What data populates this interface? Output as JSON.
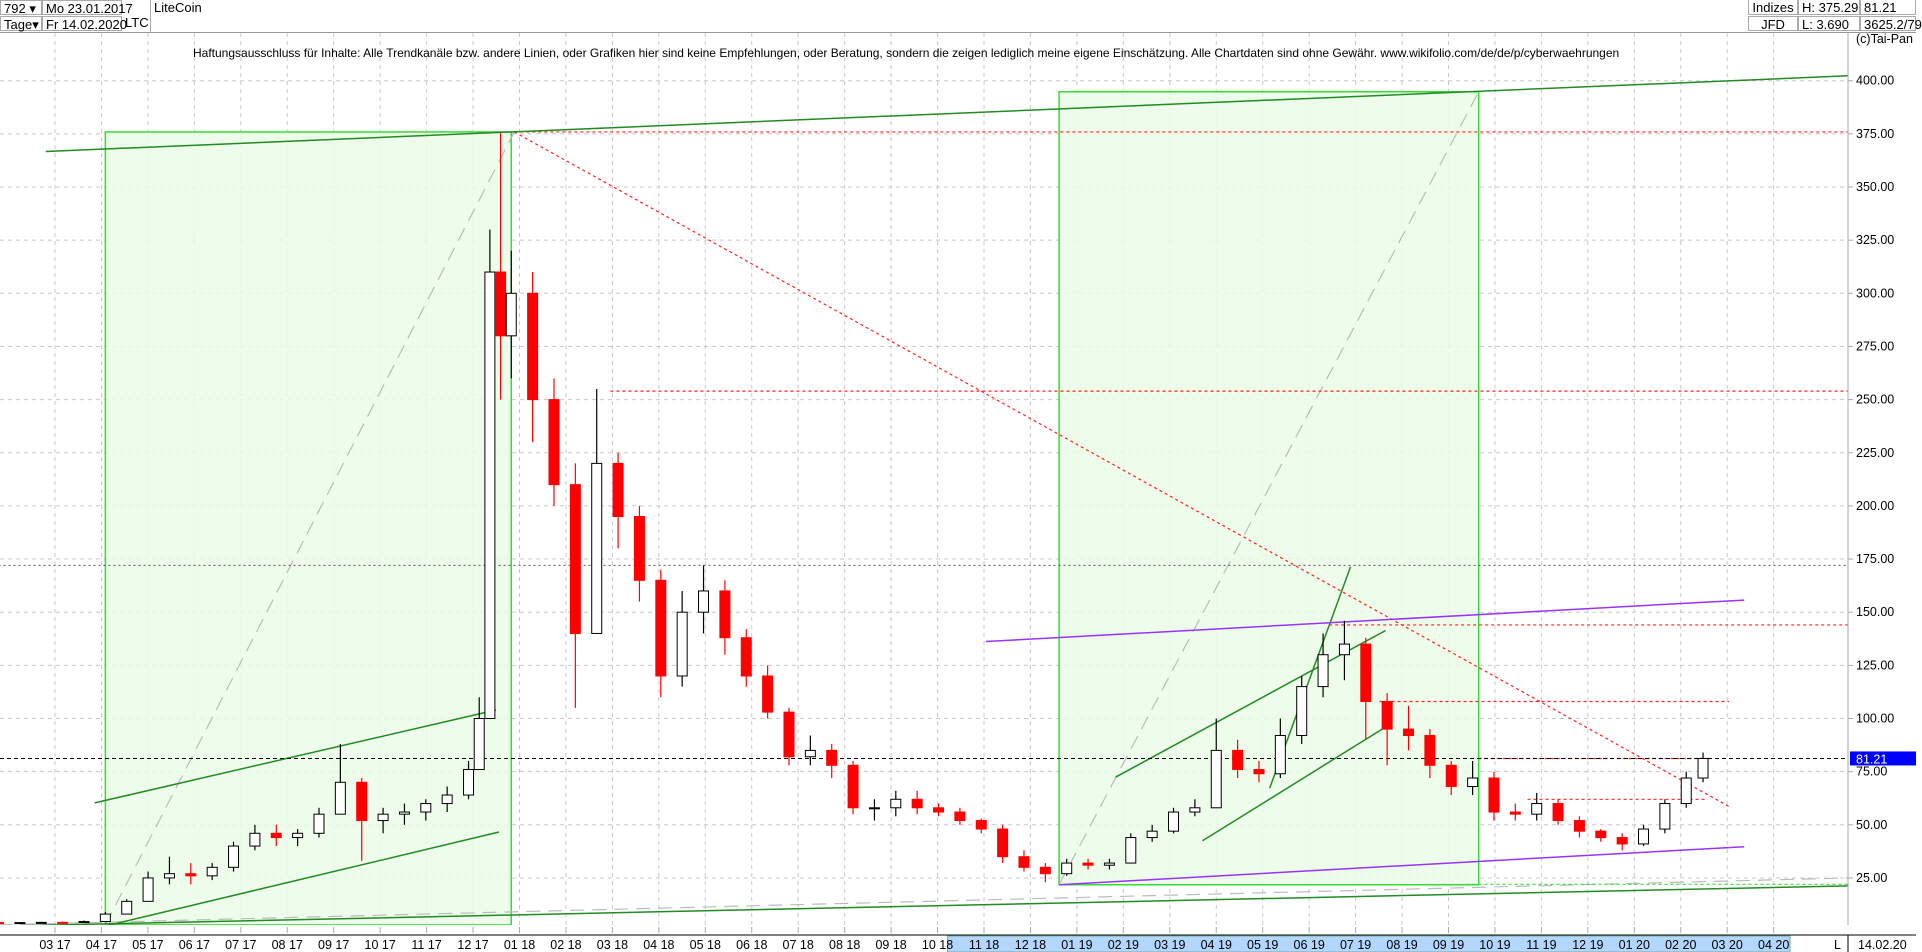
{
  "header": {
    "bar_count": "792",
    "period": "Tage",
    "start_date": "Mo 23.01.2017",
    "end_date": "Fr 14.02.2020",
    "symbol": "LTC",
    "name": "LiteCoin",
    "category": "Indizes",
    "exchange": "JFD",
    "high": "H: 375.29",
    "low": "L: 3.690",
    "last": "81.21",
    "info": "3625.2/79",
    "copyright": "(c)Tai-Pan"
  },
  "disclaimer": "Haftungsausschluss für Inhalte: Alle Trendkanäle bzw. andere Linien, oder Grafiken hier sind keine Empfehlungen, oder Beratung, sondern die zeigen lediglich meine eigene Einschätzung. Alle Chartdaten sind ohne Gewähr.  www.wikifolio.com/de/de/p/cyberwaehrungen",
  "footer": {
    "scale_mode": "L",
    "date": "14.02.20"
  },
  "colors": {
    "down": "#ff0000",
    "up": "#000000",
    "box_fill": "#ebfbe8",
    "box_stroke": "#33dd33",
    "trend": "#228b22",
    "purple": "#9933ff",
    "last_price_bg": "#0000ff",
    "time_axis_highlight": "#b3d6ff"
  },
  "chart_data": {
    "type": "candlestick",
    "ylim": [
      2.6,
      416
    ],
    "y_ticks": [
      "25.00",
      "50.00",
      "75.00",
      "100.00",
      "125.00",
      "150.00",
      "175.00",
      "200.00",
      "225.00",
      "250.00",
      "275.00",
      "300.00",
      "325.00",
      "350.00",
      "375.00",
      "400.00"
    ],
    "last_price_label": "81.21",
    "x_ticks": [
      "03 17",
      "04 17",
      "05 17",
      "06 17",
      "07 17",
      "08 17",
      "09 17",
      "10 17",
      "11 17",
      "12 17",
      "01 18",
      "02 18",
      "03 18",
      "04 18",
      "05 18",
      "06 18",
      "07 18",
      "08 18",
      "09 18",
      "10 18",
      "11 18",
      "12 18",
      "01 19",
      "02 19",
      "03 19",
      "04 19",
      "05 19",
      "06 19",
      "07 19",
      "08 19",
      "09 19",
      "10 19",
      "11 19",
      "12 19",
      "01 20",
      "02 20",
      "03 20",
      "04 20"
    ],
    "grid": true,
    "candles": [
      [
        "2017-01-23",
        4.0,
        4.2,
        3.7,
        3.9
      ],
      [
        "2017-02-06",
        3.9,
        4.2,
        3.7,
        4.0
      ],
      [
        "2017-02-20",
        4.0,
        4.3,
        3.8,
        4.1
      ],
      [
        "2017-03-06",
        4.1,
        4.5,
        3.8,
        4.0
      ],
      [
        "2017-03-20",
        4.0,
        5,
        3.8,
        4.5
      ],
      [
        "2017-04-03",
        4.5,
        9,
        4.5,
        8
      ],
      [
        "2017-04-17",
        8,
        15,
        8,
        14
      ],
      [
        "2017-05-01",
        14,
        28,
        14,
        25
      ],
      [
        "2017-05-15",
        25,
        35,
        22,
        27
      ],
      [
        "2017-05-29",
        27,
        32,
        22,
        26
      ],
      [
        "2017-06-12",
        26,
        32,
        24,
        30
      ],
      [
        "2017-06-26",
        30,
        42,
        28,
        40
      ],
      [
        "2017-07-10",
        40,
        50,
        38,
        46
      ],
      [
        "2017-07-24",
        46,
        50,
        40,
        44
      ],
      [
        "2017-08-07",
        44,
        48,
        40,
        46
      ],
      [
        "2017-08-21",
        46,
        58,
        44,
        55
      ],
      [
        "2017-09-04",
        55,
        88,
        55,
        70
      ],
      [
        "2017-09-18",
        70,
        72,
        33,
        52
      ],
      [
        "2017-10-02",
        52,
        58,
        46,
        55
      ],
      [
        "2017-10-16",
        55,
        60,
        50,
        56
      ],
      [
        "2017-10-30",
        56,
        62,
        52,
        60
      ],
      [
        "2017-11-13",
        60,
        68,
        56,
        64
      ],
      [
        "2017-11-27",
        64,
        80,
        62,
        76
      ],
      [
        "2017-12-04",
        76,
        110,
        76,
        100
      ],
      [
        "2017-12-11",
        100,
        330,
        100,
        310
      ],
      [
        "2017-12-18",
        310,
        375.29,
        250,
        280
      ],
      [
        "2017-12-25",
        280,
        320,
        260,
        300
      ],
      [
        "2018-01-08",
        300,
        310,
        230,
        250
      ],
      [
        "2018-01-22",
        250,
        260,
        200,
        210
      ],
      [
        "2018-02-05",
        210,
        220,
        105,
        140
      ],
      [
        "2018-02-19",
        140,
        255,
        140,
        220
      ],
      [
        "2018-03-05",
        220,
        225,
        180,
        195
      ],
      [
        "2018-03-19",
        195,
        200,
        155,
        165
      ],
      [
        "2018-04-02",
        165,
        170,
        110,
        120
      ],
      [
        "2018-04-16",
        120,
        160,
        115,
        150
      ],
      [
        "2018-04-30",
        150,
        172,
        140,
        160
      ],
      [
        "2018-05-14",
        160,
        165,
        130,
        138
      ],
      [
        "2018-05-28",
        138,
        142,
        115,
        120
      ],
      [
        "2018-06-11",
        120,
        125,
        100,
        103
      ],
      [
        "2018-06-25",
        103,
        105,
        78,
        82
      ],
      [
        "2018-07-09",
        82,
        92,
        78,
        85
      ],
      [
        "2018-07-23",
        85,
        88,
        72,
        78
      ],
      [
        "2018-08-06",
        78,
        80,
        55,
        58
      ],
      [
        "2018-08-20",
        58,
        62,
        52,
        58
      ],
      [
        "2018-09-03",
        58,
        66,
        54,
        62
      ],
      [
        "2018-09-17",
        62,
        66,
        55,
        58
      ],
      [
        "2018-10-01",
        58,
        60,
        54,
        56
      ],
      [
        "2018-10-15",
        56,
        58,
        50,
        52
      ],
      [
        "2018-10-29",
        52,
        53,
        46,
        48
      ],
      [
        "2018-11-12",
        48,
        50,
        32,
        35
      ],
      [
        "2018-11-26",
        35,
        38,
        28,
        30
      ],
      [
        "2018-12-10",
        30,
        32,
        23,
        27
      ],
      [
        "2018-12-24",
        27,
        34,
        26,
        32
      ],
      [
        "2019-01-07",
        32,
        34,
        29,
        31
      ],
      [
        "2019-01-21",
        31,
        34,
        29,
        32
      ],
      [
        "2019-02-04",
        32,
        46,
        32,
        44
      ],
      [
        "2019-02-18",
        44,
        50,
        42,
        47
      ],
      [
        "2019-03-04",
        47,
        58,
        46,
        56
      ],
      [
        "2019-03-18",
        56,
        62,
        54,
        58
      ],
      [
        "2019-04-01",
        58,
        100,
        58,
        85
      ],
      [
        "2019-04-15",
        85,
        90,
        72,
        76
      ],
      [
        "2019-04-29",
        76,
        80,
        70,
        74
      ],
      [
        "2019-05-13",
        74,
        100,
        72,
        92
      ],
      [
        "2019-05-27",
        92,
        120,
        88,
        115
      ],
      [
        "2019-06-10",
        115,
        140,
        110,
        130
      ],
      [
        "2019-06-24",
        130,
        146,
        118,
        135
      ],
      [
        "2019-07-08",
        135,
        138,
        90,
        108
      ],
      [
        "2019-07-22",
        108,
        112,
        78,
        95
      ],
      [
        "2019-08-05",
        95,
        106,
        85,
        92
      ],
      [
        "2019-08-19",
        92,
        95,
        72,
        78
      ],
      [
        "2019-09-02",
        78,
        80,
        64,
        68
      ],
      [
        "2019-09-16",
        68,
        80,
        64,
        72
      ],
      [
        "2019-09-30",
        72,
        75,
        52,
        56
      ],
      [
        "2019-10-14",
        56,
        60,
        52,
        55
      ],
      [
        "2019-10-28",
        55,
        65,
        52,
        60
      ],
      [
        "2019-11-11",
        60,
        62,
        50,
        52
      ],
      [
        "2019-11-25",
        52,
        54,
        44,
        47
      ],
      [
        "2019-12-09",
        47,
        48,
        42,
        44
      ],
      [
        "2019-12-23",
        44,
        46,
        38,
        41
      ],
      [
        "2020-01-06",
        41,
        50,
        40,
        48
      ],
      [
        "2020-01-20",
        48,
        62,
        46,
        60
      ],
      [
        "2020-02-03",
        60,
        75,
        58,
        72
      ],
      [
        "2020-02-14",
        72,
        84,
        70,
        81.21
      ]
    ],
    "annotations": {
      "boxes": [
        {
          "from": [
            "2017-04-03",
            2.9
          ],
          "to": [
            "2017-12-25",
            375.9
          ]
        },
        {
          "from": [
            "2018-12-19",
            21.8
          ],
          "to": [
            "2019-09-20",
            394.8
          ]
        }
      ],
      "trendlines": [
        {
          "color": "trend",
          "from": [
            "2017-02-23",
            366.7
          ],
          "to": [
            "2020-05-19",
            402.3
          ]
        },
        {
          "color": "trend",
          "from": [
            "2017-01-23",
            2.3
          ],
          "to": [
            "2020-05-19",
            21.3
          ]
        },
        {
          "color": "trend",
          "from": [
            "2017-03-27",
            60.3
          ],
          "to": [
            "2017-12-15",
            104
          ]
        },
        {
          "color": "trend",
          "from": [
            "2017-04-06",
            2.9
          ],
          "to": [
            "2017-12-17",
            46.6
          ]
        },
        {
          "color": "trend",
          "from": [
            "2019-01-25",
            72.4
          ],
          "to": [
            "2019-07-21",
            141.4
          ]
        },
        {
          "color": "trend",
          "from": [
            "2019-03-23",
            42.5
          ],
          "to": [
            "2019-07-21",
            96
          ]
        },
        {
          "color": "trend",
          "from": [
            "2019-05-06",
            67.2
          ],
          "to": [
            "2019-06-28",
            171.3
          ]
        },
        {
          "color": "purple",
          "from": [
            "2018-11-01",
            136.2
          ],
          "to": [
            "2020-03-12",
            155.7
          ]
        },
        {
          "color": "purple",
          "from": [
            "2018-12-19",
            21.8
          ],
          "to": [
            "2020-03-12",
            39.7
          ]
        }
      ],
      "dashed_grey": [
        {
          "from": [
            "2017-04-03",
            2.9
          ],
          "to": [
            "2017-12-27",
            375.9
          ]
        },
        {
          "from": [
            "2018-12-19",
            21.8
          ],
          "to": [
            "2019-09-20",
            394.8
          ]
        },
        {
          "from": [
            "2017-01-23",
            2.9
          ],
          "to": [
            "2020-05-19",
            25
          ]
        }
      ],
      "dotted_red": [
        {
          "from": [
            "2017-12-27",
            375.9
          ],
          "to": [
            "2020-05-19",
            375.9
          ]
        },
        {
          "from": [
            "2018-02-28",
            254
          ],
          "to": [
            "2020-05-19",
            254
          ]
        },
        {
          "from": [
            "2019-06-14",
            144
          ],
          "to": [
            "2020-05-19",
            144
          ]
        },
        {
          "from": [
            "2019-07-17",
            108
          ],
          "to": [
            "2020-03-02",
            108
          ]
        },
        {
          "from": [
            "2019-09-20",
            81.2
          ],
          "to": [
            "2020-02-20",
            81.2
          ]
        },
        {
          "from": [
            "2019-10-22",
            62
          ],
          "to": [
            "2020-02-16",
            62
          ]
        },
        {
          "from": [
            "2017-12-27",
            375.9
          ],
          "to": [
            "2020-03-02",
            58.6
          ]
        }
      ],
      "dotted_green": [
        {
          "from": [
            "2019-09-12",
            22
          ],
          "to": [
            "2020-05-19",
            22
          ]
        }
      ],
      "dotted_black": [
        {
          "from": [
            "2017-01-23",
            172
          ],
          "to": [
            "2020-05-19",
            172
          ]
        }
      ]
    }
  }
}
